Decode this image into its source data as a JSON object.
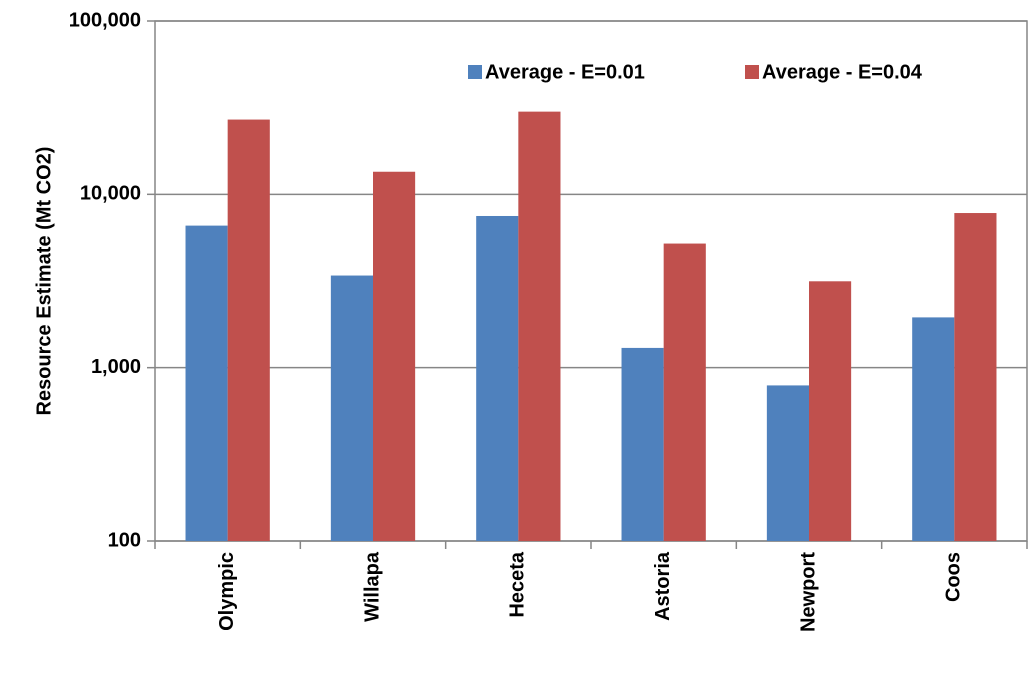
{
  "chart_data": {
    "type": "bar",
    "ylabel": "Resource Estimate (Mt CO2)",
    "categories": [
      "Olympic",
      "Willapa",
      "Heceta",
      "Astoria",
      "Newport",
      "Coos"
    ],
    "series": [
      {
        "name": "Average - E=0.01",
        "color": "#4f81bd",
        "values": [
          6600,
          3400,
          7500,
          1300,
          790,
          1950
        ]
      },
      {
        "name": "Average - E=0.04",
        "color": "#c0504d",
        "values": [
          27000,
          13500,
          30000,
          5200,
          3150,
          7800
        ]
      }
    ],
    "yscale": "log",
    "ylim": [
      100,
      100000
    ],
    "yticks": [
      100,
      {
        "value": 1000,
        "label": "1,000"
      },
      {
        "value": 10000,
        "label": "10,000"
      },
      {
        "value": 100000,
        "label": "100,000"
      }
    ],
    "grid": true,
    "legend": "top-right"
  }
}
